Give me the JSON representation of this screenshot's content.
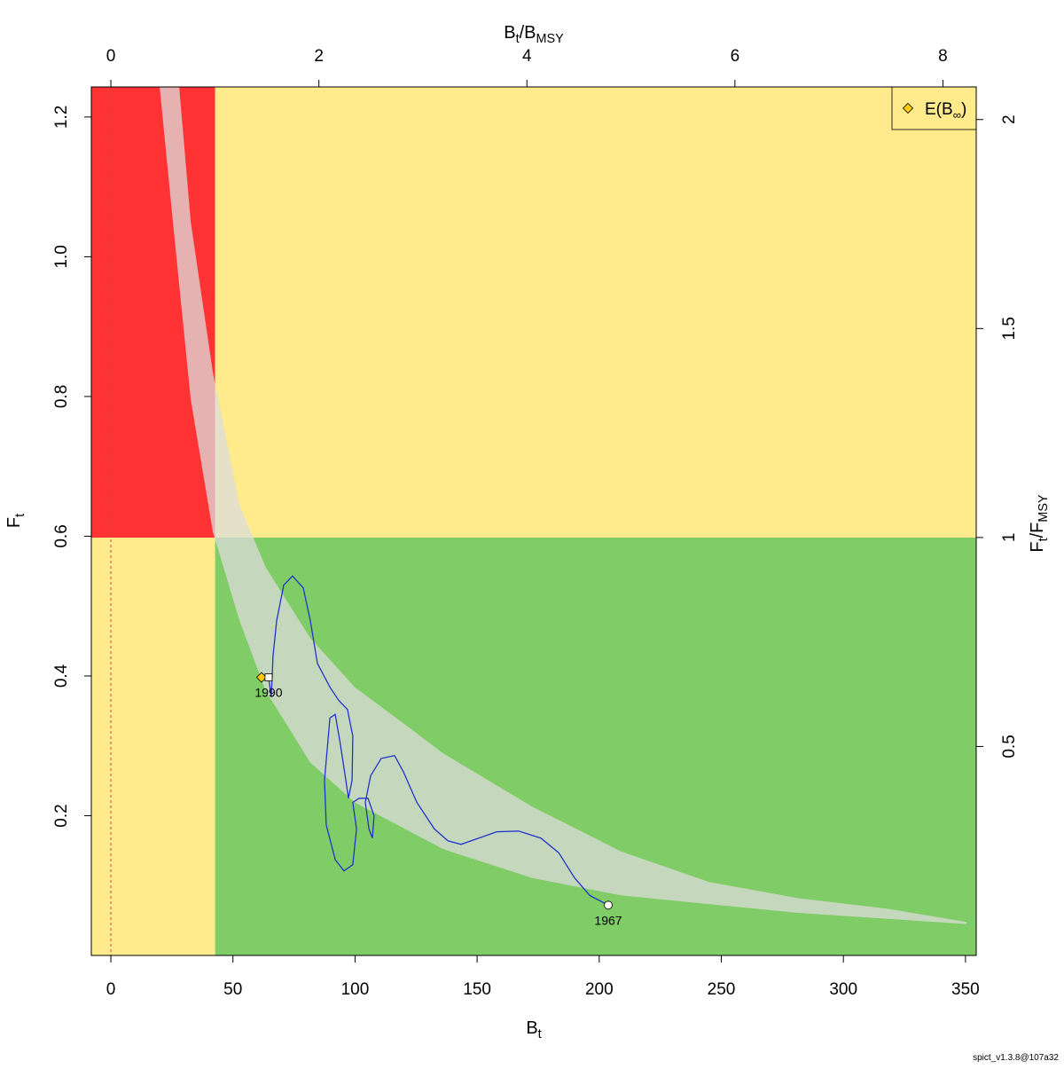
{
  "chart_data": {
    "type": "line",
    "xlabel": [
      "B",
      "t"
    ],
    "ylabel": [
      "F",
      "t"
    ],
    "x2label": [
      "B",
      "t",
      "/B",
      "MSY"
    ],
    "y2label": [
      "F",
      "t",
      "/F",
      "MSY"
    ],
    "xlim": [
      -8,
      354.4
    ],
    "xticks": [
      0,
      50,
      100,
      150,
      200,
      250,
      300,
      350
    ],
    "ylim": [
      0,
      1.243
    ],
    "yticks": [
      0.2,
      0.4,
      0.6,
      0.8,
      {
        "value": 1,
        "label": "1.0"
      },
      1.2
    ],
    "x2lim": [
      -0.188,
      8.32
    ],
    "x2ticks": [
      0,
      2,
      4,
      6,
      8
    ],
    "y2lim": [
      0,
      2.078
    ],
    "y2ticks": [
      0.5,
      1,
      1.5,
      2
    ],
    "bmsy": 42.7,
    "fmsy": 0.598,
    "vline": 0,
    "zone_colors": {
      "red": "#ff3333",
      "yellow": "#ffeb8c",
      "green": "#80cc66"
    },
    "band": {
      "color": "#dcdcdc",
      "lower": {
        "x": [
          20.0,
          25.4,
          32.7,
          41.8,
          52.7,
          63.5,
          81.7,
          99.9,
          136.2,
          172.5,
          208.8,
          281.4,
          350.4
        ],
        "y": [
          1.243,
          1.05,
          0.796,
          0.606,
          0.479,
          0.378,
          0.276,
          0.219,
          0.152,
          0.111,
          0.086,
          0.061,
          0.045
        ]
      },
      "upper": {
        "x": [
          28.0,
          32.7,
          41.8,
          52.7,
          63.5,
          81.7,
          99.9,
          118.0,
          136.2,
          172.5,
          208.8,
          245.1,
          281.4,
          317.7,
          350.4
        ],
        "y": [
          1.243,
          1.05,
          0.834,
          0.644,
          0.555,
          0.454,
          0.384,
          0.337,
          0.289,
          0.213,
          0.149,
          0.105,
          0.082,
          0.067,
          0.048
        ]
      }
    },
    "series": [
      {
        "color": "#2233cc",
        "x": [
          203.7,
          196.1,
          189.9,
          183.4,
          176.1,
          167.0,
          158.0,
          150.7,
          143.4,
          138.0,
          132.5,
          125.3,
          119.8,
          116.2,
          110.7,
          106.4,
          104.2,
          105.7,
          107.1,
          107.8,
          105.3,
          101.7,
          99.1,
          100.6,
          99.1,
          95.5,
          91.9,
          88.2,
          87.5,
          89.7,
          91.9,
          94.0,
          96.2,
          97.3,
          98.8,
          99.1,
          96.9,
          93.3,
          89.7,
          84.6,
          81.7,
          78.8,
          74.4,
          70.8,
          67.9,
          66.4,
          65.7,
          64.6
        ],
        "y": [
          0.072,
          0.086,
          0.111,
          0.147,
          0.168,
          0.178,
          0.177,
          0.168,
          0.159,
          0.164,
          0.181,
          0.219,
          0.263,
          0.286,
          0.282,
          0.257,
          0.219,
          0.181,
          0.168,
          0.2,
          0.225,
          0.225,
          0.219,
          0.181,
          0.13,
          0.121,
          0.137,
          0.187,
          0.251,
          0.34,
          0.345,
          0.302,
          0.251,
          0.225,
          0.251,
          0.314,
          0.352,
          0.365,
          0.384,
          0.418,
          0.479,
          0.526,
          0.543,
          0.53,
          0.479,
          0.428,
          0.37,
          0.398
        ],
        "start_label": "1967",
        "end_label": "1990"
      }
    ],
    "marker": {
      "label": [
        "E(B",
        "∞",
        ")"
      ],
      "x": 61.7,
      "y": 0.398,
      "color": "#ffcc00"
    },
    "legend": "topright",
    "footer": "spict_v1.3.8@107a32"
  }
}
